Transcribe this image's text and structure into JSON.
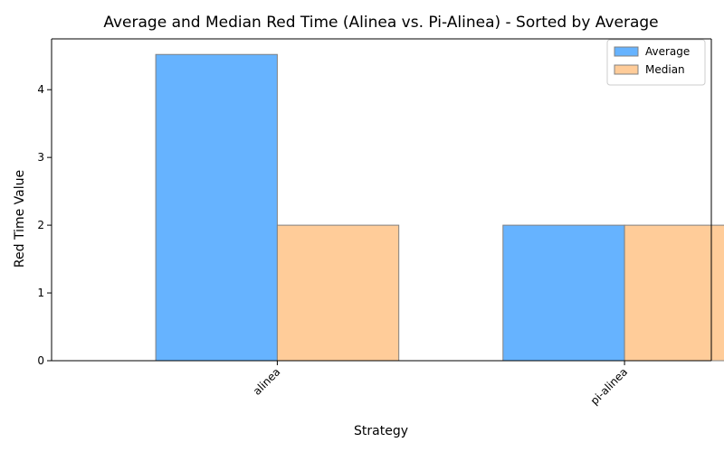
{
  "chart_data": {
    "type": "bar",
    "title": "Average and Median Red Time (Alinea vs. Pi-Alinea) - Sorted by Average",
    "xlabel": "Strategy",
    "ylabel": "Red Time Value",
    "categories": [
      "alinea",
      "pi-alinea"
    ],
    "series": [
      {
        "name": "Average",
        "values": [
          4.52,
          2.0
        ],
        "color": "#66b3ff"
      },
      {
        "name": "Median",
        "values": [
          2.0,
          2.0
        ],
        "color": "#ffcc99"
      }
    ],
    "ylim": [
      0,
      4.75
    ],
    "yticks": [
      0,
      1,
      2,
      3,
      4
    ],
    "grid": false,
    "legend_position": "top-right",
    "bar_edge_color": "#808080"
  }
}
